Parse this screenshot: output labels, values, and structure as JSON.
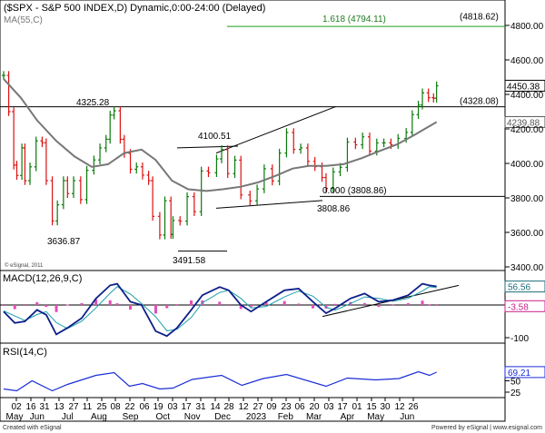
{
  "chart_data": {
    "type": "line",
    "header": "($SPX - S&P 500 INDEX,D) Dynamic,0:00-24:00 (Delayed)",
    "ma_label": "MA(55,C)",
    "macd_label": "MACD(12,26,9,C)",
    "rsi_label": "RSI(14,C)",
    "footer_left": "Created with eSignal",
    "footer_right": "Powered by eSignal | www.esignal.com",
    "copyright": "© eSignal, 2011",
    "price_axis": {
      "ylim": [
        3400,
        4900
      ],
      "ticks": [
        "4800.00",
        "4600.00",
        "4400.00",
        "4200.00",
        "4000.00",
        "3800.00",
        "3600.00",
        "3400.00"
      ],
      "tick_values": [
        4800,
        4600,
        4400,
        4200,
        4000,
        3800,
        3600,
        3400
      ]
    },
    "macd_axis": {
      "ylim": [
        -120,
        100
      ],
      "ticks": [
        "-100"
      ],
      "tick_values": [
        -100
      ]
    },
    "rsi_axis": {
      "ylim": [
        20,
        80
      ],
      "ticks": [
        "50",
        "25"
      ],
      "tick_values": [
        50,
        25
      ]
    },
    "price_labels": [
      {
        "text": "4450.38",
        "value": 4450.38,
        "color": "#000000"
      },
      {
        "text": "4239.88",
        "value": 4239.88,
        "color": "#555555"
      },
      {
        "text": "(4328.08)",
        "value": 4328.08,
        "color": "#000000"
      },
      {
        "text": "(4818.62)",
        "value": 4818.62,
        "color": "#000000"
      }
    ],
    "macd_labels": [
      {
        "text": "56.56",
        "value": 56.56,
        "color": "#1c6b7a"
      },
      {
        "text": "-3.58",
        "value": -3.58,
        "color": "#cc1f8a"
      }
    ],
    "rsi_value_label": {
      "text": "69.21",
      "value": 69.21
    },
    "x_months": [
      {
        "label": "May",
        "date": "2022-05-02"
      },
      {
        "label": "Jun",
        "date": "2022-06-01"
      },
      {
        "label": "Jul",
        "date": "2022-07-01"
      },
      {
        "label": "Aug",
        "date": "2022-08-01"
      },
      {
        "label": "Sep",
        "date": "2022-09-01"
      },
      {
        "label": "Oct",
        "date": "2022-10-03"
      },
      {
        "label": "Nov",
        "date": "2022-11-01"
      },
      {
        "label": "Dec",
        "date": "2022-12-01"
      },
      {
        "label": "2023",
        "date": "2023-01-03"
      },
      {
        "label": "Feb",
        "date": "2023-02-01"
      },
      {
        "label": "Mar",
        "date": "2023-03-01"
      },
      {
        "label": "Apr",
        "date": "2023-04-03"
      },
      {
        "label": "May",
        "date": "2023-05-01"
      },
      {
        "label": "Jun",
        "date": "2023-06-01"
      }
    ],
    "x_days": [
      "02",
      "16",
      "31",
      "13",
      "27",
      "11",
      "25",
      "08",
      "22",
      "06",
      "19",
      "03",
      "17",
      "31",
      "14",
      "28",
      "12",
      "27",
      "09",
      "23",
      "06",
      "20",
      "03",
      "17",
      "01",
      "15",
      "30",
      "12",
      "26"
    ],
    "annotations": [
      {
        "text": "4325.28",
        "date": "2022-08-16",
        "value": 4325.28,
        "color": "#000000"
      },
      {
        "text": "3636.87",
        "date": "2022-06-16",
        "value": 3636.87,
        "color": "#000000"
      },
      {
        "text": "3491.58",
        "date": "2022-10-13",
        "value": 3491.58,
        "color": "#000000"
      },
      {
        "text": "4100.51",
        "date": "2022-11-30",
        "value": 4100.51,
        "color": "#000000"
      },
      {
        "text": "0.000 (3808.86)",
        "date": "2023-03-13",
        "value": 3808.86,
        "color": "#000000"
      },
      {
        "text": "3808.86",
        "date": "2023-03-13",
        "value": 3808.86,
        "color": "#000000"
      },
      {
        "text": "1.618 (4794.11)",
        "date": "2023-03-13",
        "value": 4794.11,
        "color": "#1f7a1f"
      }
    ],
    "series": [
      {
        "kind": "ohlc",
        "points": [
          [
            "2022-04-29",
            4510
          ],
          [
            "2022-05-04",
            4300
          ],
          [
            "2022-05-09",
            3990
          ],
          [
            "2022-05-12",
            3930
          ],
          [
            "2022-05-17",
            4090
          ],
          [
            "2022-05-20",
            3900
          ],
          [
            "2022-05-25",
            3980
          ],
          [
            "2022-05-31",
            4130
          ],
          [
            "2022-06-06",
            4120
          ],
          [
            "2022-06-10",
            3900
          ],
          [
            "2022-06-16",
            3666
          ],
          [
            "2022-06-21",
            3760
          ],
          [
            "2022-06-27",
            3900
          ],
          [
            "2022-07-01",
            3825
          ],
          [
            "2022-07-07",
            3900
          ],
          [
            "2022-07-14",
            3790
          ],
          [
            "2022-07-20",
            3960
          ],
          [
            "2022-07-27",
            4020
          ],
          [
            "2022-08-02",
            4090
          ],
          [
            "2022-08-08",
            4140
          ],
          [
            "2022-08-12",
            4280
          ],
          [
            "2022-08-16",
            4305
          ],
          [
            "2022-08-22",
            4140
          ],
          [
            "2022-08-26",
            4058
          ],
          [
            "2022-09-01",
            3966
          ],
          [
            "2022-09-07",
            3980
          ],
          [
            "2022-09-13",
            3932
          ],
          [
            "2022-09-19",
            3900
          ],
          [
            "2022-09-23",
            3693
          ],
          [
            "2022-09-30",
            3585
          ],
          [
            "2022-10-05",
            3783
          ],
          [
            "2022-10-11",
            3588
          ],
          [
            "2022-10-13",
            3669
          ],
          [
            "2022-10-20",
            3665
          ],
          [
            "2022-10-27",
            3807
          ],
          [
            "2022-11-03",
            3720
          ],
          [
            "2022-11-10",
            3956
          ],
          [
            "2022-11-17",
            3946
          ],
          [
            "2022-11-25",
            4026
          ],
          [
            "2022-11-30",
            4080
          ],
          [
            "2022-12-06",
            3941
          ],
          [
            "2022-12-13",
            4019
          ],
          [
            "2022-12-19",
            3817
          ],
          [
            "2022-12-28",
            3783
          ],
          [
            "2023-01-04",
            3852
          ],
          [
            "2023-01-11",
            3969
          ],
          [
            "2023-01-19",
            3898
          ],
          [
            "2023-01-26",
            4060
          ],
          [
            "2023-02-02",
            4179
          ],
          [
            "2023-02-09",
            4081
          ],
          [
            "2023-02-16",
            4090
          ],
          [
            "2023-02-23",
            4012
          ],
          [
            "2023-03-02",
            3981
          ],
          [
            "2023-03-09",
            3918
          ],
          [
            "2023-03-13",
            3855
          ],
          [
            "2023-03-20",
            3951
          ],
          [
            "2023-03-27",
            3977
          ],
          [
            "2023-04-03",
            4124
          ],
          [
            "2023-04-11",
            4108
          ],
          [
            "2023-04-18",
            4154
          ],
          [
            "2023-04-25",
            4071
          ],
          [
            "2023-05-02",
            4119
          ],
          [
            "2023-05-09",
            4119
          ],
          [
            "2023-05-16",
            4109
          ],
          [
            "2023-05-23",
            4145
          ],
          [
            "2023-05-31",
            4180
          ],
          [
            "2023-06-06",
            4283
          ],
          [
            "2023-06-12",
            4338
          ],
          [
            "2023-06-16",
            4409
          ],
          [
            "2023-06-22",
            4381
          ],
          [
            "2023-06-27",
            4378
          ],
          [
            "2023-06-30",
            4450
          ]
        ]
      },
      {
        "name": "MA(55,C)",
        "kind": "ma",
        "points": [
          [
            "2022-04-29",
            4490
          ],
          [
            "2022-05-16",
            4380
          ],
          [
            "2022-06-01",
            4250
          ],
          [
            "2022-06-20",
            4130
          ],
          [
            "2022-07-08",
            4040
          ],
          [
            "2022-07-25",
            3980
          ],
          [
            "2022-08-10",
            3995
          ],
          [
            "2022-08-26",
            4060
          ],
          [
            "2022-09-12",
            4080
          ],
          [
            "2022-09-26",
            4020
          ],
          [
            "2022-10-12",
            3900
          ],
          [
            "2022-10-28",
            3850
          ],
          [
            "2022-11-15",
            3840
          ],
          [
            "2022-12-01",
            3850
          ],
          [
            "2022-12-19",
            3865
          ],
          [
            "2023-01-05",
            3890
          ],
          [
            "2023-01-23",
            3930
          ],
          [
            "2023-02-08",
            3970
          ],
          [
            "2023-02-24",
            3985
          ],
          [
            "2023-03-13",
            3985
          ],
          [
            "2023-03-30",
            3995
          ],
          [
            "2023-04-17",
            4030
          ],
          [
            "2023-05-04",
            4070
          ],
          [
            "2023-05-22",
            4110
          ],
          [
            "2023-06-08",
            4165
          ],
          [
            "2023-06-30",
            4240
          ]
        ]
      },
      {
        "name": "MACD",
        "kind": "macd",
        "points": [
          [
            "2022-04-29",
            -20
          ],
          [
            "2022-05-10",
            -55
          ],
          [
            "2022-05-20",
            -50
          ],
          [
            "2022-06-01",
            -15
          ],
          [
            "2022-06-10",
            -30
          ],
          [
            "2022-06-20",
            -90
          ],
          [
            "2022-07-01",
            -70
          ],
          [
            "2022-07-15",
            -40
          ],
          [
            "2022-07-29",
            20
          ],
          [
            "2022-08-12",
            60
          ],
          [
            "2022-08-19",
            65
          ],
          [
            "2022-09-01",
            10
          ],
          [
            "2022-09-12",
            0
          ],
          [
            "2022-09-26",
            -80
          ],
          [
            "2022-10-07",
            -95
          ],
          [
            "2022-10-17",
            -70
          ],
          [
            "2022-10-31",
            -15
          ],
          [
            "2022-11-11",
            30
          ],
          [
            "2022-11-28",
            55
          ],
          [
            "2022-12-07",
            45
          ],
          [
            "2022-12-19",
            0
          ],
          [
            "2022-12-29",
            -20
          ],
          [
            "2023-01-13",
            10
          ],
          [
            "2023-01-31",
            45
          ],
          [
            "2023-02-14",
            50
          ],
          [
            "2023-02-28",
            10
          ],
          [
            "2023-03-13",
            -25
          ],
          [
            "2023-03-22",
            -10
          ],
          [
            "2023-04-06",
            20
          ],
          [
            "2023-04-20",
            35
          ],
          [
            "2023-05-04",
            10
          ],
          [
            "2023-05-18",
            15
          ],
          [
            "2023-06-02",
            30
          ],
          [
            "2023-06-16",
            65
          ],
          [
            "2023-06-23",
            60
          ],
          [
            "2023-06-30",
            57
          ]
        ]
      },
      {
        "name": "RSI(14,C)",
        "kind": "rsi",
        "points": [
          [
            "2022-04-29",
            32
          ],
          [
            "2022-05-12",
            28
          ],
          [
            "2022-05-27",
            50
          ],
          [
            "2022-06-16",
            28
          ],
          [
            "2022-07-01",
            42
          ],
          [
            "2022-07-29",
            62
          ],
          [
            "2022-08-16",
            68
          ],
          [
            "2022-08-31",
            38
          ],
          [
            "2022-09-13",
            44
          ],
          [
            "2022-09-30",
            32
          ],
          [
            "2022-10-13",
            34
          ],
          [
            "2022-11-01",
            53
          ],
          [
            "2022-11-30",
            62
          ],
          [
            "2022-12-20",
            40
          ],
          [
            "2023-01-10",
            55
          ],
          [
            "2023-02-02",
            64
          ],
          [
            "2023-03-13",
            38
          ],
          [
            "2023-04-03",
            56
          ],
          [
            "2023-05-01",
            52
          ],
          [
            "2023-05-24",
            55
          ],
          [
            "2023-06-12",
            70
          ],
          [
            "2023-06-23",
            62
          ],
          [
            "2023-06-30",
            69
          ]
        ]
      }
    ]
  }
}
